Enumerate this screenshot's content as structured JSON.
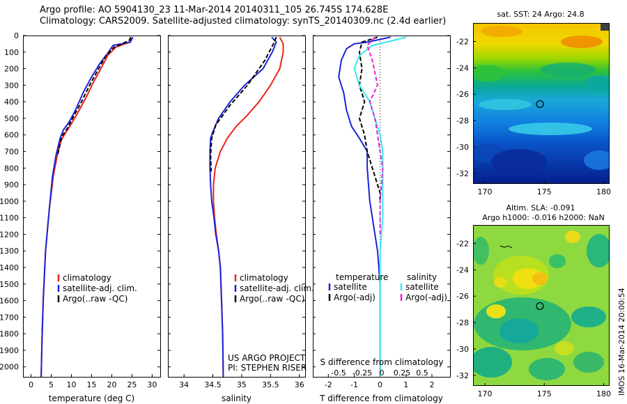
{
  "header": {
    "line1": "Argo profile: AO 5904130_23 11-Mar-2014 20140311_105 26.745S 174.628E",
    "line2": "Climatology: CARS2009. Satellite-adjusted climatology: synTS_20140309.nc (2.4d earlier)"
  },
  "colors": {
    "climatology": "#e8231c",
    "satellite": "#1a22d8",
    "argo": "#000000",
    "sat_salinity": "#38e6ee",
    "argo_salinity": "#e225d6"
  },
  "y_axis": {
    "ticks": [
      "0",
      "100",
      "200",
      "300",
      "400",
      "500",
      "600",
      "700",
      "800",
      "900",
      "1000",
      "1100",
      "1200",
      "1300",
      "1400",
      "1500",
      "1600",
      "1700",
      "1800",
      "1900",
      "2000"
    ],
    "range": [
      0,
      2060
    ]
  },
  "chart_data": [
    {
      "type": "line",
      "xlabel": "temperature (deg C)",
      "x_ticks": [
        "0",
        "5",
        "10",
        "15",
        "20",
        "25",
        "30"
      ],
      "xlim": [
        -2,
        32
      ],
      "series": [
        {
          "name": "climatology",
          "color": "#e8231c",
          "points": [
            [
              24.8,
              10
            ],
            [
              24.5,
              40
            ],
            [
              21,
              70
            ],
            [
              19,
              120
            ],
            [
              17.5,
              190
            ],
            [
              15.5,
              280
            ],
            [
              13.5,
              380
            ],
            [
              11.5,
              470
            ],
            [
              9.8,
              540
            ],
            [
              8.5,
              590
            ],
            [
              7.5,
              630
            ],
            [
              6.5,
              720
            ],
            [
              5.5,
              850
            ],
            [
              4.5,
              1050
            ],
            [
              3.6,
              1300
            ],
            [
              3,
              1600
            ],
            [
              2.7,
              1850
            ],
            [
              2.5,
              2060
            ]
          ]
        },
        {
          "name": "satellite-adj. clim.",
          "color": "#1a22d8",
          "points": [
            [
              25.2,
              10
            ],
            [
              24.6,
              40
            ],
            [
              20.3,
              60
            ],
            [
              19.2,
              100
            ],
            [
              17,
              170
            ],
            [
              15,
              250
            ],
            [
              13,
              340
            ],
            [
              11,
              450
            ],
            [
              9.5,
              520
            ],
            [
              8,
              570
            ],
            [
              7.2,
              620
            ],
            [
              6.2,
              720
            ],
            [
              5.3,
              850
            ],
            [
              4.5,
              1050
            ],
            [
              3.6,
              1300
            ],
            [
              3,
              1600
            ],
            [
              2.7,
              1850
            ],
            [
              2.5,
              2060
            ]
          ]
        },
        {
          "name": "Argo(..raw -QC)",
          "color": "#000000",
          "dashed": true,
          "points": [
            [
              24.7,
              10
            ],
            [
              24.3,
              30
            ],
            [
              22.5,
              50
            ],
            [
              20.6,
              70
            ],
            [
              18.6,
              120
            ],
            [
              16.5,
              210
            ],
            [
              14.5,
              300
            ],
            [
              12.5,
              400
            ],
            [
              10.5,
              490
            ],
            [
              9,
              560
            ],
            [
              7.6,
              610
            ],
            [
              6.6,
              720
            ]
          ]
        }
      ],
      "legend": {
        "placement": "middle-right",
        "entries": [
          "climatology",
          "satellite-adj. clim.",
          "Argo(..raw -QC)"
        ]
      }
    },
    {
      "type": "line",
      "xlabel": "salinity",
      "x_ticks": [
        "34",
        "34.5",
        "35",
        "35.5",
        "36"
      ],
      "xlim": [
        33.72,
        36.1
      ],
      "series": [
        {
          "name": "climatology",
          "color": "#e8231c",
          "points": [
            [
              35.66,
              10
            ],
            [
              35.72,
              50
            ],
            [
              35.72,
              100
            ],
            [
              35.66,
              200
            ],
            [
              35.5,
              300
            ],
            [
              35.3,
              400
            ],
            [
              35.1,
              480
            ],
            [
              34.9,
              550
            ],
            [
              34.75,
              620
            ],
            [
              34.63,
              700
            ],
            [
              34.54,
              800
            ],
            [
              34.51,
              900
            ],
            [
              34.51,
              1000
            ],
            [
              34.53,
              1100
            ],
            [
              34.56,
              1200
            ],
            [
              34.6,
              1300
            ],
            [
              34.63,
              1400
            ],
            [
              34.65,
              1600
            ],
            [
              34.67,
              1800
            ],
            [
              34.68,
              2060
            ]
          ]
        },
        {
          "name": "satellite-adj. clim.",
          "color": "#1a22d8",
          "points": [
            [
              35.52,
              10
            ],
            [
              35.6,
              40
            ],
            [
              35.53,
              100
            ],
            [
              35.37,
              200
            ],
            [
              35.05,
              300
            ],
            [
              34.8,
              400
            ],
            [
              34.6,
              500
            ],
            [
              34.5,
              580
            ],
            [
              34.46,
              620
            ],
            [
              34.45,
              700
            ],
            [
              34.45,
              800
            ],
            [
              34.46,
              900
            ],
            [
              34.48,
              1000
            ],
            [
              34.52,
              1100
            ],
            [
              34.55,
              1200
            ],
            [
              34.6,
              1300
            ],
            [
              34.63,
              1400
            ],
            [
              34.65,
              1600
            ],
            [
              34.67,
              1800
            ],
            [
              34.68,
              2060
            ]
          ]
        },
        {
          "name": "Argo(..raw -QC)",
          "color": "#000000",
          "dashed": true,
          "points": [
            [
              35.6,
              10
            ],
            [
              35.55,
              50
            ],
            [
              35.4,
              150
            ],
            [
              35.1,
              300
            ],
            [
              34.8,
              420
            ],
            [
              34.55,
              540
            ],
            [
              34.48,
              620
            ],
            [
              34.46,
              720
            ],
            [
              34.47,
              820
            ]
          ]
        }
      ],
      "legend": {
        "placement": "middle-right",
        "entries": [
          "climatology",
          "satellite-adj. clim.",
          "Argo(..raw -QC)"
        ]
      },
      "annotations": [
        "US ARGO PROJECT",
        "PI: STEPHEN RISER"
      ]
    },
    {
      "type": "line",
      "xlabel": "T difference from climatology",
      "x_ticks_bottom": [
        "-2",
        "-1",
        "0",
        "1",
        "2"
      ],
      "xlim_bottom": [
        -2.6,
        2.7
      ],
      "top_axis_label": "S difference from climatology",
      "x_ticks_top": [
        "-0.5",
        "-0.25",
        "0",
        "0.25",
        "0.5"
      ],
      "series": [
        {
          "name": "satellite (temperature)",
          "color": "#1a22d8",
          "points": [
            [
              0.4,
              10
            ],
            [
              -0.5,
              40
            ],
            [
              -1,
              50
            ],
            [
              -1.3,
              80
            ],
            [
              -1.5,
              150
            ],
            [
              -1.6,
              250
            ],
            [
              -1.4,
              350
            ],
            [
              -1.3,
              450
            ],
            [
              -1.1,
              550
            ],
            [
              -0.8,
              620
            ],
            [
              -0.5,
              700
            ],
            [
              -0.5,
              800
            ],
            [
              -0.4,
              1000
            ],
            [
              -0.2,
              1200
            ],
            [
              -0.1,
              1300
            ],
            [
              0,
              1500
            ],
            [
              0,
              2060
            ]
          ]
        },
        {
          "name": "Argo(-adj) (temperature)",
          "color": "#000000",
          "dashed": true,
          "points": [
            [
              -0.1,
              10
            ],
            [
              -0.7,
              40
            ],
            [
              -0.8,
              100
            ],
            [
              -0.7,
              200
            ],
            [
              -0.8,
              300
            ],
            [
              -0.6,
              400
            ],
            [
              -0.8,
              500
            ],
            [
              -0.6,
              600
            ],
            [
              -0.5,
              700
            ],
            [
              -0.3,
              800
            ],
            [
              0,
              950
            ],
            [
              0,
              1000
            ]
          ]
        },
        {
          "name": "satellite (salinity)",
          "color": "#38e6ee",
          "points": [
            [
              1,
              10
            ],
            [
              0.5,
              30
            ],
            [
              -0.3,
              60
            ],
            [
              -0.8,
              120
            ],
            [
              -1,
              200
            ],
            [
              -0.8,
              300
            ],
            [
              -0.4,
              400
            ],
            [
              -0.2,
              500
            ],
            [
              0,
              600
            ],
            [
              0.1,
              700
            ],
            [
              0.1,
              900
            ],
            [
              0.1,
              1100
            ],
            [
              0,
              1300
            ],
            [
              0,
              2060
            ]
          ]
        },
        {
          "name": "Argo(-adj) (salinity)",
          "color": "#e225d6",
          "dashed": true,
          "points": [
            [
              -0.2,
              10
            ],
            [
              -0.5,
              60
            ],
            [
              -0.3,
              150
            ],
            [
              -0.1,
              300
            ],
            [
              -0.4,
              400
            ],
            [
              -0.2,
              500
            ],
            [
              -0.1,
              600
            ],
            [
              0,
              700
            ],
            [
              0.1,
              800
            ],
            [
              0,
              1000
            ],
            [
              0,
              1200
            ]
          ]
        }
      ],
      "legend": {
        "placement": "bottom-center",
        "headers": [
          "temperature",
          "salinity"
        ],
        "entries": [
          "satellite",
          "Argo(-adj)",
          "satellite",
          "Argo(-adj)"
        ]
      }
    },
    {
      "type": "heatmap",
      "title": "sat. SST: 24 Argo: 24.8",
      "x_ticks": [
        "170",
        "175",
        "180"
      ],
      "y_ticks": [
        "-22",
        "-24",
        "-26",
        "-28",
        "-30",
        "-32"
      ],
      "xlim": [
        169,
        180.5
      ],
      "ylim": [
        -32.8,
        -20.6
      ],
      "marker": {
        "lon": 174.63,
        "lat": -26.75
      }
    },
    {
      "type": "heatmap",
      "title": "Altim. SLA: -0.091",
      "subtitle": "Argo h1000: -0.016 h2000: NaN",
      "x_ticks": [
        "170",
        "175",
        "180"
      ],
      "y_ticks": [
        "-22",
        "-24",
        "-26",
        "-28",
        "-30",
        "-32"
      ],
      "xlim": [
        169,
        180.5
      ],
      "ylim": [
        -32.8,
        -20.6
      ],
      "marker": {
        "lon": 174.63,
        "lat": -26.75
      }
    }
  ],
  "stamp": "IMOS 16-Mar-2014 20:00:54"
}
